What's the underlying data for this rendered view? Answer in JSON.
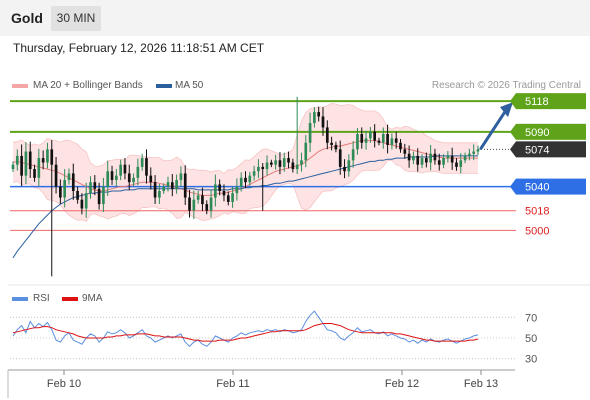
{
  "header": {
    "instrument": "Gold",
    "timeframe": "30 MIN"
  },
  "datetime": "Thursday, February 12, 2026 11:18:51 AM CET",
  "legend_main": [
    {
      "label": "MA 20 + Bollinger Bands",
      "color": "#f4a6a6"
    },
    {
      "label": "MA 50",
      "color": "#2a5f9e"
    }
  ],
  "legend_rsi": [
    {
      "label": "RSI",
      "color": "#5b8fe0"
    },
    {
      "label": "9MA",
      "color": "#dd1111"
    }
  ],
  "credit": "Research © 2026 Trading Central",
  "colors": {
    "up": "#2e8b57",
    "down": "#111111",
    "resistance": "#5fa31a",
    "support": "#2f6fe6",
    "support_light": "#ee6666",
    "current": "#333333",
    "arrow": "#2f5f9e"
  },
  "chart_data": [
    {
      "type": "candlestick",
      "y_range": [
        4952,
        5130
      ],
      "x_ticks": [
        "Feb 10",
        "Feb 11",
        "Feb 12",
        "Feb 13"
      ],
      "levels": [
        {
          "label": "5118",
          "value": 5118,
          "kind": "resistance"
        },
        {
          "label": "5090",
          "value": 5090,
          "kind": "resistance"
        },
        {
          "label": "5074",
          "value": 5074,
          "kind": "current"
        },
        {
          "label": "5040",
          "value": 5040,
          "kind": "support"
        },
        {
          "label": "5018",
          "value": 5018,
          "kind": "support_light"
        },
        {
          "label": "5000",
          "value": 5000,
          "kind": "support_light"
        }
      ],
      "series": {
        "close": [
          5060,
          5068,
          5050,
          5072,
          5056,
          5048,
          5066,
          5062,
          5074,
          5060,
          5040,
          5030,
          5046,
          5052,
          5036,
          5028,
          5020,
          5034,
          5044,
          5038,
          5024,
          5040,
          5054,
          5046,
          5050,
          5060,
          5052,
          5044,
          5048,
          5058,
          5066,
          5050,
          5044,
          5030,
          5036,
          5040,
          5044,
          5038,
          5046,
          5052,
          5030,
          5018,
          5028,
          5032,
          5024,
          5018,
          5030,
          5042,
          5036,
          5032,
          5026,
          5034,
          5040,
          5048,
          5044,
          5050,
          5054,
          5058,
          5056,
          5062,
          5060,
          5064,
          5058,
          5066,
          5062,
          5056,
          5060,
          5064,
          5080,
          5098,
          5108,
          5104,
          5094,
          5080,
          5078,
          5074,
          5058,
          5054,
          5064,
          5074,
          5088,
          5080,
          5084,
          5090,
          5082,
          5080,
          5088,
          5078,
          5084,
          5080,
          5074,
          5070,
          5064,
          5068,
          5060,
          5066,
          5062,
          5070,
          5064,
          5060,
          5066,
          5068,
          5062,
          5058,
          5064,
          5068,
          5070,
          5072,
          5074
        ],
        "ma20": [
          5062,
          5063,
          5062,
          5061,
          5060,
          5059,
          5058,
          5057,
          5056,
          5055,
          5054,
          5052,
          5050,
          5048,
          5046,
          5044,
          5042,
          5040,
          5038,
          5037,
          5036,
          5036,
          5037,
          5038,
          5039,
          5040,
          5040,
          5041,
          5042,
          5043,
          5044,
          5044,
          5044,
          5044,
          5043,
          5042,
          5041,
          5040,
          5039,
          5038,
          5037,
          5035,
          5034,
          5033,
          5032,
          5032,
          5032,
          5033,
          5034,
          5034,
          5035,
          5036,
          5037,
          5038,
          5040,
          5042,
          5044,
          5046,
          5048,
          5050,
          5052,
          5054,
          5055,
          5056,
          5057,
          5058,
          5059,
          5060,
          5063,
          5066,
          5069,
          5072,
          5074,
          5075,
          5076,
          5077,
          5077,
          5078,
          5079,
          5080,
          5081,
          5082,
          5082,
          5082,
          5082,
          5081,
          5080,
          5079,
          5078,
          5077,
          5076,
          5075,
          5074,
          5073,
          5072,
          5071,
          5070,
          5069,
          5068,
          5067,
          5066,
          5066,
          5066,
          5066,
          5066,
          5066,
          5066,
          5066,
          5066
        ],
        "ma50": [
          4975,
          4981,
          4986,
          4991,
          4996,
          5001,
          5006,
          5010,
          5014,
          5018,
          5021,
          5024,
          5026,
          5028,
          5030,
          5031,
          5032,
          5033,
          5034,
          5034,
          5035,
          5035,
          5035,
          5036,
          5036,
          5036,
          5037,
          5037,
          5037,
          5038,
          5038,
          5038,
          5038,
          5038,
          5038,
          5038,
          5038,
          5038,
          5038,
          5038,
          5038,
          5038,
          5038,
          5037,
          5037,
          5037,
          5037,
          5037,
          5037,
          5037,
          5037,
          5038,
          5038,
          5038,
          5039,
          5039,
          5040,
          5040,
          5041,
          5041,
          5042,
          5043,
          5043,
          5044,
          5045,
          5045,
          5046,
          5047,
          5048,
          5049,
          5050,
          5051,
          5052,
          5053,
          5054,
          5055,
          5056,
          5057,
          5058,
          5059,
          5060,
          5061,
          5062,
          5063,
          5063,
          5064,
          5064,
          5065,
          5065,
          5066,
          5066,
          5066,
          5067,
          5067,
          5067,
          5067,
          5067,
          5067,
          5068,
          5068,
          5068,
          5068,
          5068,
          5068,
          5068,
          5068,
          5068,
          5068,
          5068
        ]
      },
      "projection": {
        "from": 5074,
        "to": 5118
      }
    },
    {
      "type": "line",
      "name": "RSI panel",
      "y_ticks": [
        70,
        50,
        30
      ],
      "y_range": [
        20,
        80
      ],
      "series": [
        {
          "name": "RSI",
          "values": [
            52,
            58,
            62,
            55,
            66,
            60,
            64,
            61,
            65,
            58,
            48,
            46,
            52,
            55,
            48,
            46,
            44,
            50,
            54,
            52,
            46,
            50,
            56,
            54,
            55,
            58,
            55,
            50,
            52,
            55,
            58,
            52,
            50,
            46,
            48,
            50,
            52,
            50,
            52,
            54,
            46,
            42,
            46,
            48,
            44,
            42,
            46,
            52,
            50,
            48,
            46,
            50,
            52,
            55,
            53,
            55,
            56,
            57,
            56,
            58,
            57,
            58,
            56,
            58,
            57,
            55,
            56,
            58,
            66,
            72,
            76,
            70,
            64,
            58,
            57,
            55,
            50,
            48,
            52,
            55,
            60,
            56,
            57,
            58,
            55,
            54,
            56,
            52,
            54,
            52,
            50,
            49,
            46,
            48,
            45,
            48,
            46,
            49,
            47,
            46,
            48,
            49,
            47,
            45,
            47,
            49,
            50,
            52,
            53
          ]
        },
        {
          "name": "9MA",
          "values": [
            55,
            56,
            57,
            58,
            59,
            60,
            60,
            61,
            61,
            60,
            58,
            57,
            56,
            55,
            54,
            52,
            51,
            50,
            50,
            50,
            50,
            50,
            51,
            51,
            52,
            52,
            53,
            53,
            53,
            54,
            54,
            54,
            53,
            52,
            52,
            51,
            51,
            51,
            51,
            51,
            50,
            49,
            48,
            48,
            47,
            47,
            47,
            47,
            48,
            48,
            48,
            48,
            49,
            50,
            50,
            51,
            52,
            53,
            54,
            55,
            56,
            56,
            57,
            57,
            57,
            57,
            57,
            57,
            58,
            60,
            62,
            63,
            64,
            64,
            64,
            63,
            62,
            60,
            58,
            57,
            56,
            55,
            55,
            55,
            55,
            55,
            55,
            55,
            55,
            54,
            54,
            53,
            52,
            51,
            50,
            49,
            48,
            48,
            47,
            47,
            47,
            47,
            47,
            47,
            47,
            47,
            48,
            48,
            49
          ]
        }
      ]
    }
  ]
}
